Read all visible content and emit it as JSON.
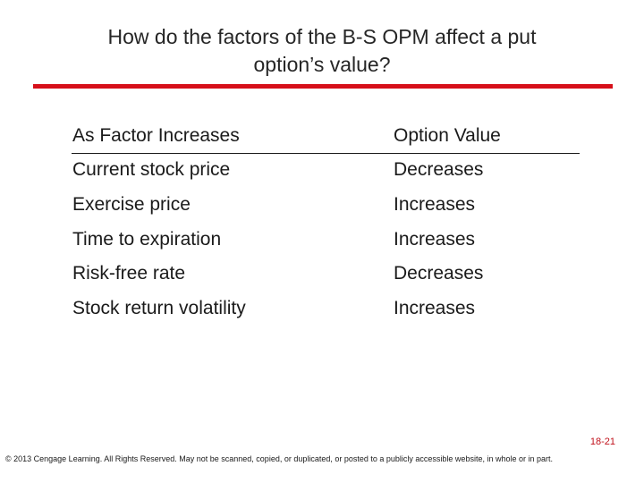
{
  "title": {
    "line1": "How do the factors of the B-S OPM affect a put",
    "line2": "option’s value?"
  },
  "table": {
    "headers": {
      "factor": "As Factor Increases",
      "value": "Option Value"
    },
    "rows": [
      {
        "factor": "Current stock price",
        "value": "Decreases"
      },
      {
        "factor": "Exercise price",
        "value": "Increases"
      },
      {
        "factor": "Time to expiration",
        "value": "Increases"
      },
      {
        "factor": "Risk-free rate",
        "value": "Decreases"
      },
      {
        "factor": "Stock return volatility",
        "value": "Increases"
      }
    ]
  },
  "footer": {
    "slide_number": "18-21",
    "copyright": "© 2013 Cengage Learning. All Rights Reserved. May not be scanned, copied, or duplicated, or posted to a publicly accessible website, in whole or in part."
  },
  "colors": {
    "accent": "#d6101a"
  }
}
